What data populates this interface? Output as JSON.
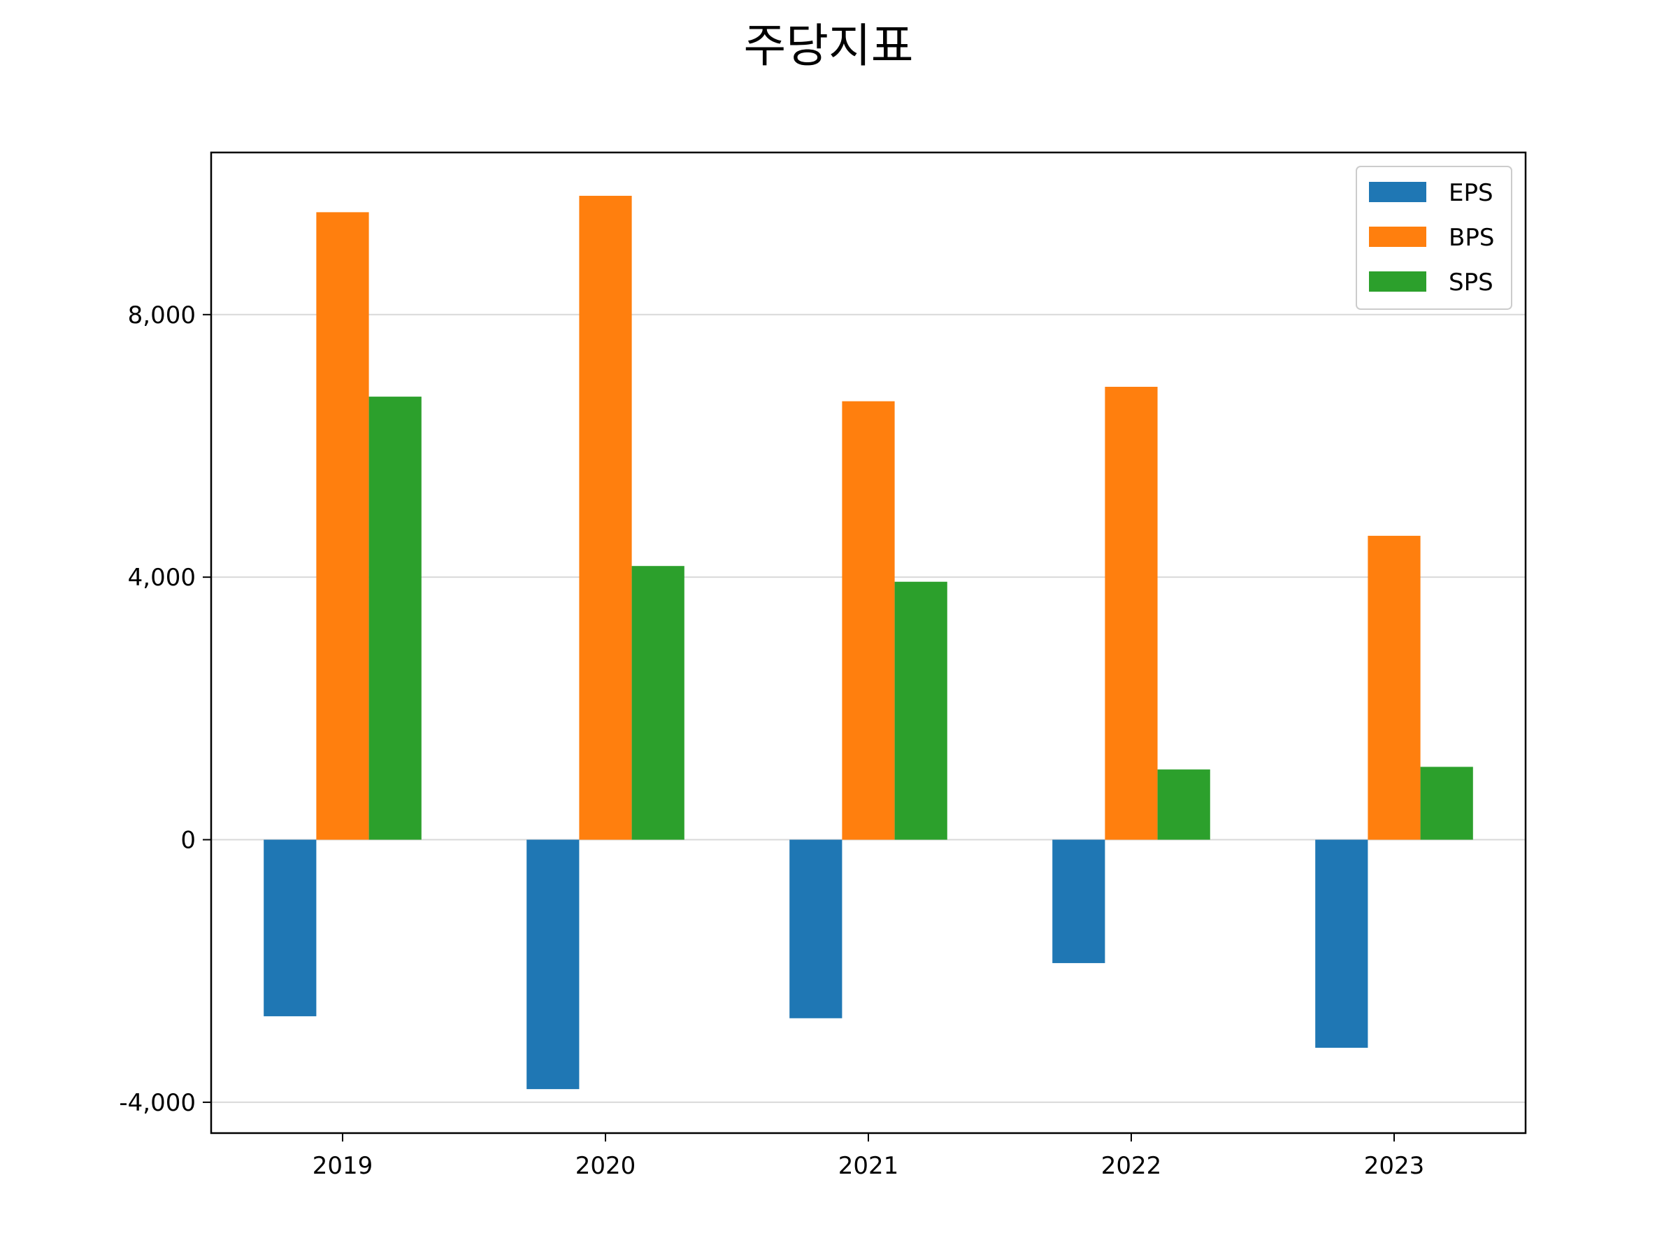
{
  "chart_data": {
    "type": "bar",
    "title": "주당지표",
    "xlabel": "",
    "ylabel": "",
    "categories": [
      "2019",
      "2020",
      "2021",
      "2022",
      "2023"
    ],
    "series": [
      {
        "name": "EPS",
        "color": "#1f77b4",
        "values": [
          -2690,
          -3800,
          -2720,
          -1880,
          -3170
        ]
      },
      {
        "name": "BPS",
        "color": "#ff7f0e",
        "values": [
          9560,
          9810,
          6680,
          6900,
          4630
        ]
      },
      {
        "name": "SPS",
        "color": "#2ca02c",
        "values": [
          6750,
          4170,
          3930,
          1070,
          1110
        ]
      }
    ],
    "ylim": [
      -4470,
      10470
    ],
    "yticks": [
      -4000,
      0,
      4000,
      8000
    ],
    "ytick_labels": [
      "-4,000",
      "0",
      "4,000",
      "8,000"
    ],
    "grid": "horizontal",
    "legend": "top-right"
  }
}
